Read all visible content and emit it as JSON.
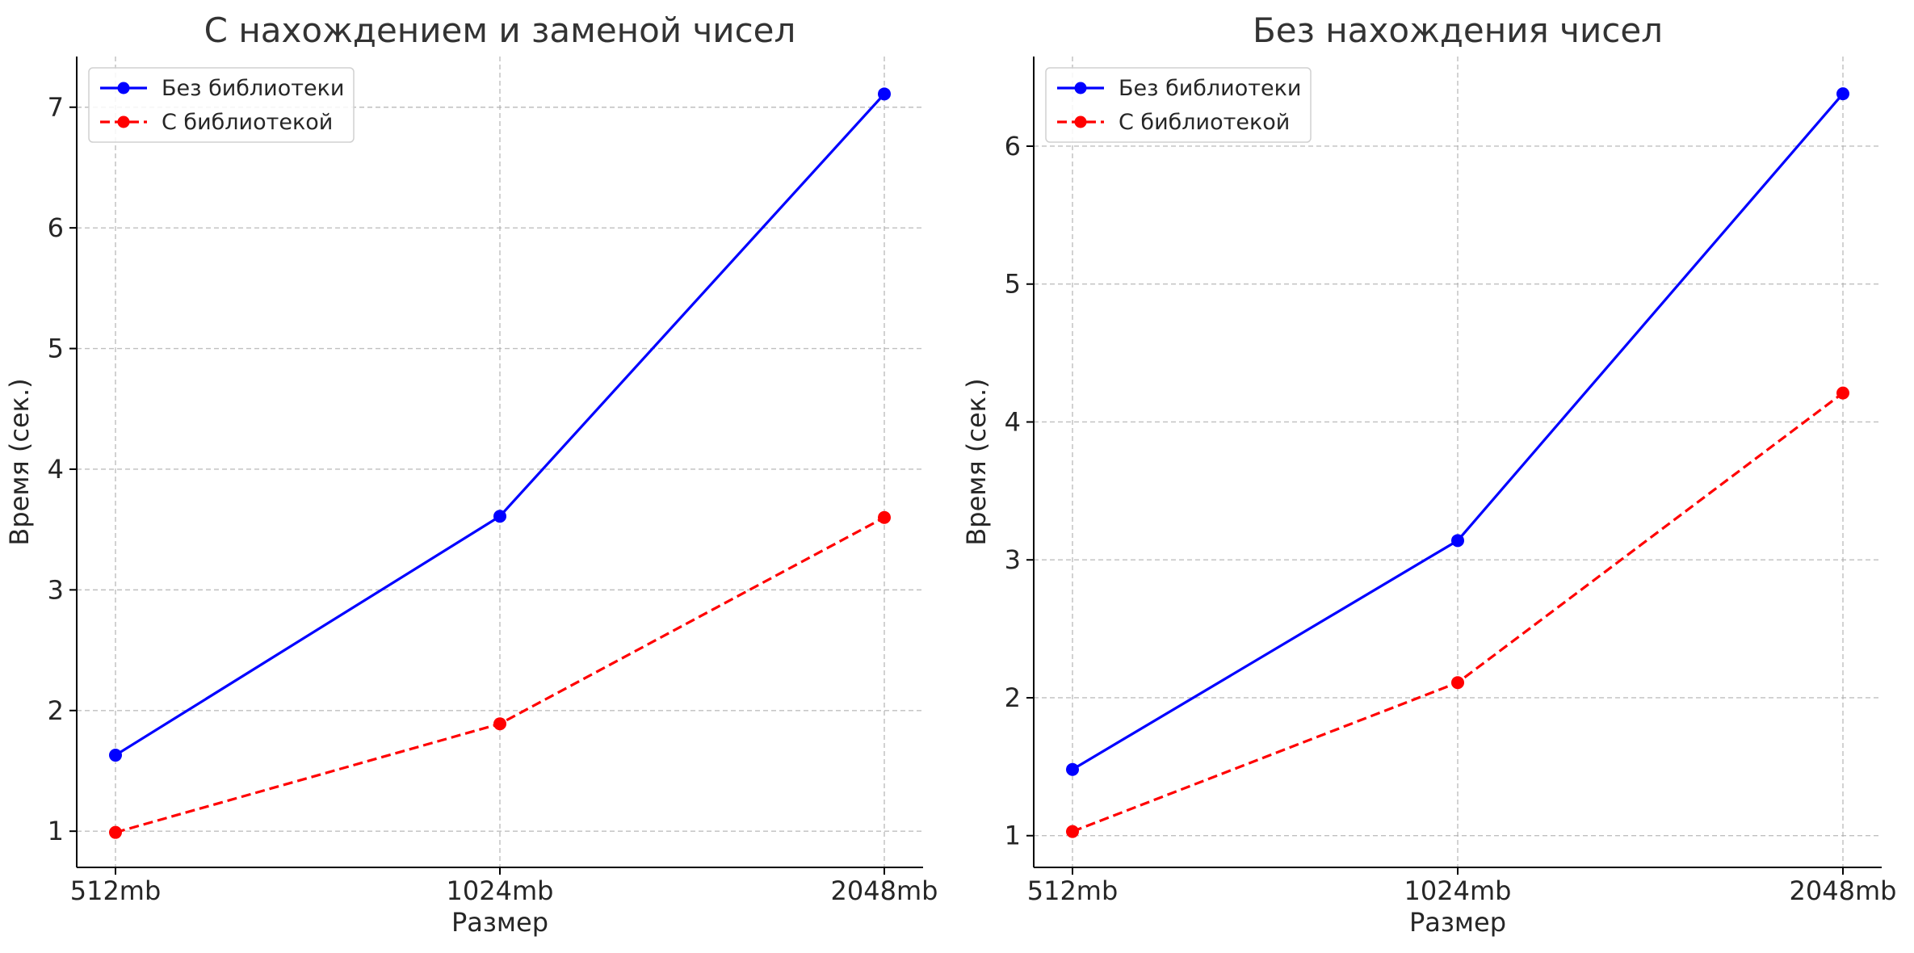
{
  "chart_data": [
    {
      "type": "line",
      "title": "С нахождением и заменой чисел",
      "xlabel": "Размер",
      "ylabel": "Время (сек.)",
      "categories": [
        "512mb",
        "1024mb",
        "2048mb"
      ],
      "y_ticks": [
        1,
        2,
        3,
        4,
        5,
        6,
        7
      ],
      "ylim": [
        0.7,
        7.42
      ],
      "grid": true,
      "legend_position": "upper left",
      "series": [
        {
          "name": "Без библиотеки",
          "values": [
            1.63,
            3.61,
            7.11
          ],
          "color": "#0000ff",
          "line_style": "solid",
          "marker": "circle"
        },
        {
          "name": "С библиотекой",
          "values": [
            0.99,
            1.89,
            3.6
          ],
          "color": "#ff0000",
          "line_style": "dashed",
          "marker": "circle"
        }
      ]
    },
    {
      "type": "line",
      "title": "Без нахождения чисел",
      "xlabel": "Размер",
      "ylabel": "Время (сек.)",
      "categories": [
        "512mb",
        "1024mb",
        "2048mb"
      ],
      "y_ticks": [
        1,
        2,
        3,
        4,
        5,
        6
      ],
      "ylim": [
        0.77,
        6.65
      ],
      "grid": true,
      "legend_position": "upper left",
      "series": [
        {
          "name": "Без библиотеки",
          "values": [
            1.48,
            3.14,
            6.38
          ],
          "color": "#0000ff",
          "line_style": "solid",
          "marker": "circle"
        },
        {
          "name": "С библиотекой",
          "values": [
            1.03,
            2.11,
            4.21
          ],
          "color": "#ff0000",
          "line_style": "dashed",
          "marker": "circle"
        }
      ]
    }
  ]
}
